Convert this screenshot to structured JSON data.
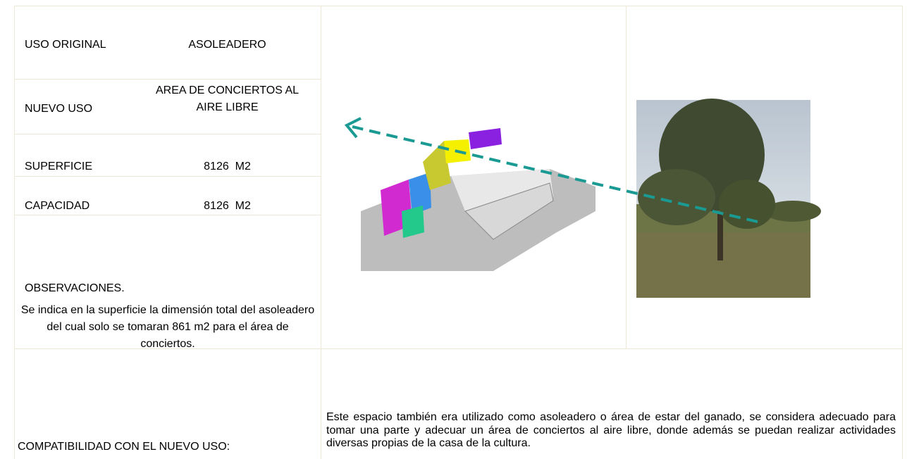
{
  "table": {
    "rows": [
      [
        "USO ORIGINAL",
        "ASOLEADERO"
      ],
      [
        "NUEVO USO",
        "AREA DE CONCIERTOS AL AIRE LIBRE"
      ],
      [
        "SUPERFICIE",
        "8126  M2"
      ],
      [
        "CAPACIDAD",
        "8126  M2"
      ]
    ]
  },
  "observations": {
    "title": "OBSERVACIONES.",
    "text": "Se indica en la superficie la dimensión total del asoleadero del cual solo se tomaran 861 m2 para el área de conciertos."
  },
  "compatibility": {
    "label": "COMPATIBILIDAD CON EL NUEVO USO:",
    "text": "Este espacio también era utilizado como asoleadero o área de estar del ganado, se considera adecuado para tomar una parte y adecuar un área de conciertos al aire libre, donde además se puedan realizar actividades diversas propias de la casa de la cultura."
  }
}
